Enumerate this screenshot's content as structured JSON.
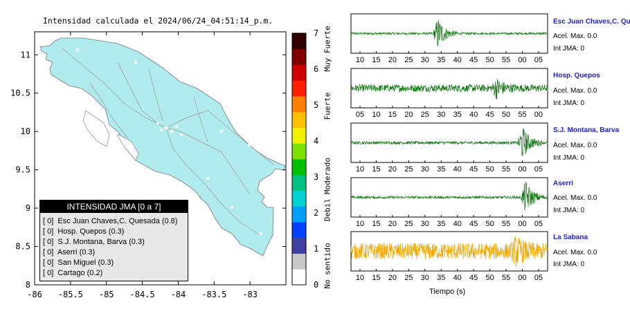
{
  "map": {
    "title": "Intensidad calculada el 2024/06/24_04:51:14_p.m.",
    "land_color": "#b0ecee",
    "legend": {
      "header": "INTENSIDAD JMA [0 a 7]",
      "items": [
        {
          "value": "[ 0]",
          "label": "Esc Juan Chaves,C. Quesada (0.8)"
        },
        {
          "value": "[ 0]",
          "label": "Hosp. Quepos (0.3)"
        },
        {
          "value": "[ 0]",
          "label": "S.J. Montana, Barva (0.3)"
        },
        {
          "value": "[ 0]",
          "label": "Aserri (0.3)"
        },
        {
          "value": "[ 0]",
          "label": "San Miguel (0.3)"
        },
        {
          "value": "[ 0]",
          "label": "Cartago (0.2)"
        }
      ]
    }
  },
  "colorbar": {
    "ticks": [
      "0",
      "1",
      "2",
      "3",
      "4",
      "5",
      "6",
      "7"
    ],
    "labels": [
      "No sentido",
      "Debil",
      "Moderado",
      "Fuerte",
      "Muy Fuerte"
    ],
    "colors": [
      "#ffffff",
      "#c8c8c8",
      "#4040a0",
      "#0040ff",
      "#00a0ff",
      "#00d0d0",
      "#00c080",
      "#00c000",
      "#80e000",
      "#f0f000",
      "#ffc000",
      "#ff8000",
      "#ff2000",
      "#d00000",
      "#800000",
      "#300000"
    ]
  },
  "chart_data": [
    {
      "type": "scatter",
      "title": "Intensidad calculada el 2024/06/24_04:51:14_p.m.",
      "xlim": [
        -86,
        -82.5
      ],
      "ylim": [
        8,
        11.3
      ],
      "x_ticks": [
        "-86",
        "-85.5",
        "-85",
        "-84.5",
        "-84",
        "-83.5",
        "-83"
      ],
      "y_ticks": [
        "8",
        "8.5",
        "9",
        "9.5",
        "10",
        "10.5",
        "11"
      ],
      "xlabel": "",
      "ylabel": ""
    },
    {
      "type": "line",
      "xlabel": "Tiempo (s)",
      "traces": [
        {
          "station": "Esc Juan Chaves,C. Qu",
          "acel": "Acel. Max. 0.0",
          "int": "Int JMA: 0",
          "color": "#1a7a1a",
          "ticks": [
            "10",
            "15",
            "20",
            "25",
            "30",
            "35",
            "40",
            "45",
            "50",
            "55",
            "00",
            "05"
          ],
          "first_tick": 10,
          "burst_at": 34,
          "burst_amp": 0.9,
          "noise": 0.06
        },
        {
          "station": "Hosp. Quepos",
          "acel": "Acel. Max. 0.0",
          "int": "Int JMA: 0",
          "color": "#1a7a1a",
          "ticks": [
            "05",
            "10",
            "15",
            "20",
            "25",
            "30",
            "35",
            "40",
            "45",
            "50",
            "55",
            "00"
          ],
          "first_tick": 5,
          "burst_at": 47,
          "burst_amp": 0.45,
          "noise": 0.2
        },
        {
          "station": "S.J. Montana, Barva",
          "acel": "Acel. Max. 0.0",
          "int": "Int JMA: 0",
          "color": "#1a7a1a",
          "ticks": [
            "10",
            "15",
            "20",
            "25",
            "30",
            "35",
            "40",
            "45",
            "50",
            "55",
            "00",
            "05"
          ],
          "first_tick": 10,
          "burst_at": 60,
          "burst_amp": 0.9,
          "noise": 0.08
        },
        {
          "station": "Aserri",
          "acel": "Acel. Max. 0.0",
          "int": "Int JMA: 0",
          "color": "#1a7a1a",
          "ticks": [
            "10",
            "15",
            "20",
            "25",
            "30",
            "35",
            "40",
            "45",
            "50",
            "55",
            "00",
            "05"
          ],
          "first_tick": 10,
          "burst_at": 61,
          "burst_amp": 0.9,
          "noise": 0.07
        },
        {
          "station": "La Sabana",
          "acel": "Acel. Max. 0.0",
          "int": "Int JMA: 0",
          "color": "#f5a800",
          "ticks": [
            "10",
            "15",
            "20",
            "25",
            "30",
            "35",
            "40",
            "45",
            "50",
            "55",
            "00",
            "05"
          ],
          "first_tick": 10,
          "burst_at": 58,
          "burst_amp": 0.5,
          "noise": 0.45
        }
      ]
    }
  ]
}
